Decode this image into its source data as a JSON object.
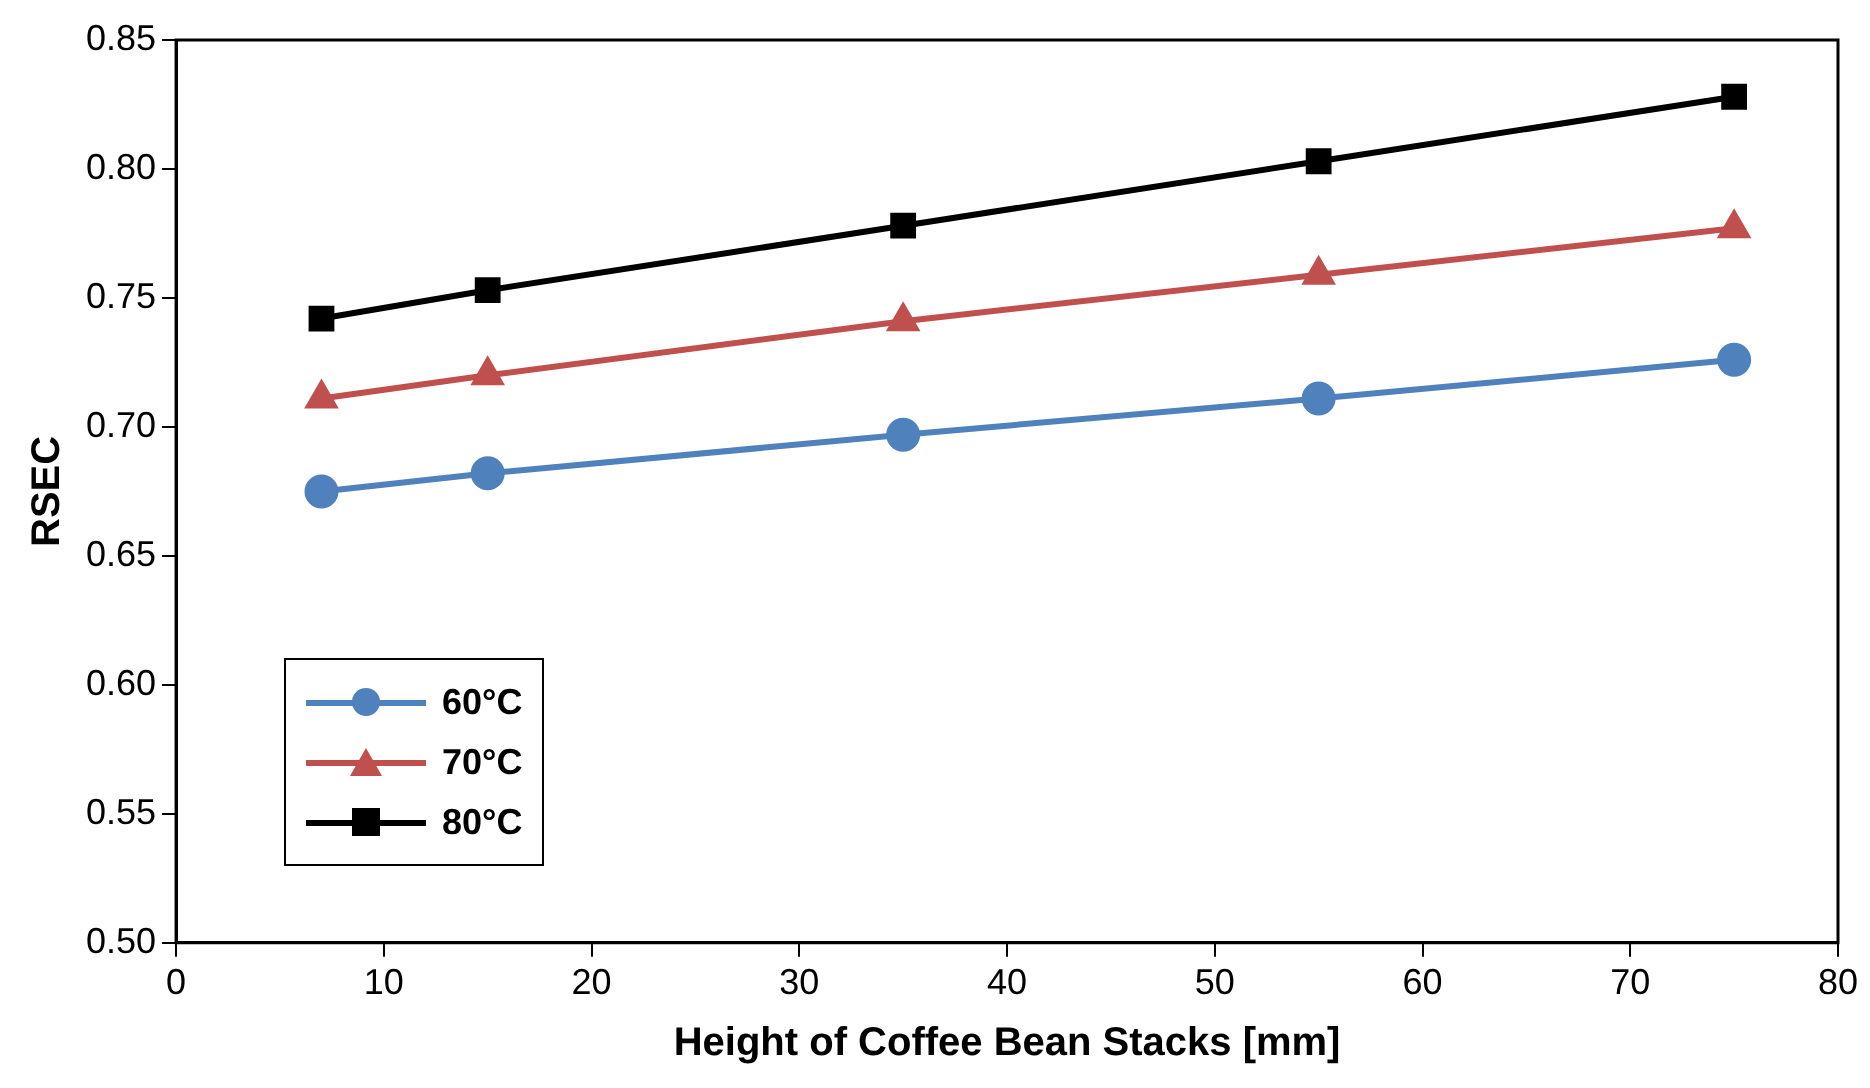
{
  "chart_data": {
    "type": "line",
    "xlabel": "Height of Coffee Bean Stacks [mm]",
    "ylabel": "RSEC",
    "x": [
      7,
      15,
      35,
      55,
      75
    ],
    "series": [
      {
        "name": "60°C",
        "color": "#4f81bd",
        "marker": "circle",
        "values": [
          0.675,
          0.682,
          0.697,
          0.711,
          0.726
        ]
      },
      {
        "name": "70°C",
        "color": "#c0504d",
        "marker": "triangle",
        "values": [
          0.711,
          0.72,
          0.741,
          0.759,
          0.777
        ]
      },
      {
        "name": "80°C",
        "color": "#000000",
        "marker": "square",
        "values": [
          0.742,
          0.753,
          0.778,
          0.803,
          0.828
        ]
      }
    ],
    "xlim": [
      0,
      80
    ],
    "xticks": [
      0,
      10,
      20,
      30,
      40,
      50,
      60,
      70,
      80
    ],
    "ylim": [
      0.5,
      0.85
    ],
    "yticks": [
      {
        "value": 0.5,
        "label": "0.50"
      },
      0.55,
      {
        "value": 0.6,
        "label": "0.60"
      },
      0.65,
      {
        "value": 0.7,
        "label": "0.70"
      },
      0.75,
      {
        "value": 0.8,
        "label": "0.80"
      },
      0.85
    ],
    "grid": false,
    "legend": "bottom left",
    "line_style": "solid"
  }
}
